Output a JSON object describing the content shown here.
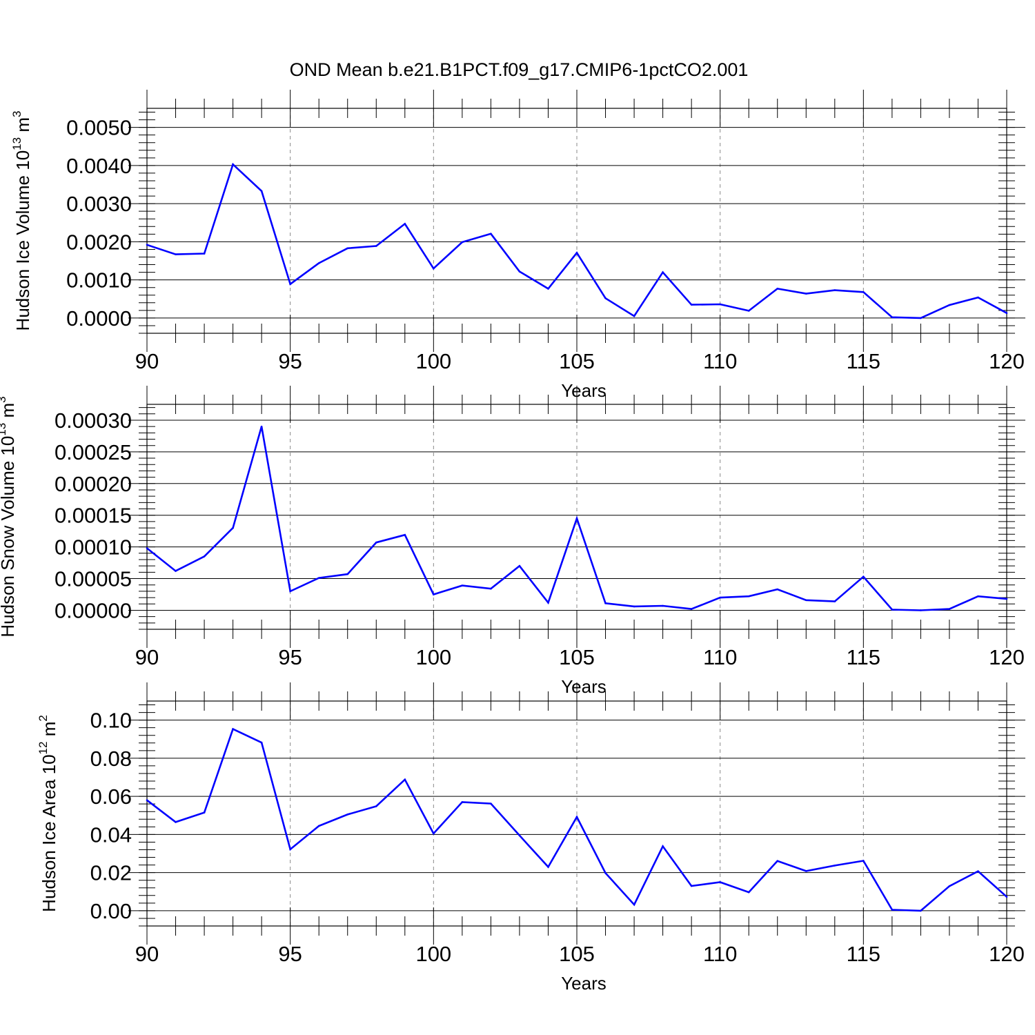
{
  "title": "OND Mean b.e21.B1PCT.f09_g17.CMIP6-1pctCO2.001",
  "colors": {
    "line": "#0000ff",
    "axis": "#000000",
    "grid": "#888888",
    "background": "#ffffff"
  },
  "chart_data": [
    {
      "type": "line",
      "title": "OND Mean b.e21.B1PCT.f09_g17.CMIP6-1pctCO2.001",
      "xlabel": "Years",
      "ylabel": {
        "base": "Hudson Ice Volume 10",
        "sup": "13",
        "unit": " m",
        "unit_sup": "3"
      },
      "xlim": [
        90,
        120
      ],
      "ylim": [
        -0.0004,
        0.0055
      ],
      "x_ticks": [
        90,
        95,
        100,
        105,
        110,
        115,
        120
      ],
      "x_tick_labels": [
        "90",
        "95",
        "100",
        "105",
        "110",
        "115",
        "120"
      ],
      "y_ticks": [
        0,
        0.001,
        0.002,
        0.003,
        0.004,
        0.005
      ],
      "y_tick_labels": [
        "0.0000",
        "0.0010",
        "0.0020",
        "0.0030",
        "0.0040",
        "0.0050"
      ],
      "y_minor_step": 0.0002,
      "grid": "dashed vertical at x major ticks",
      "x": [
        90,
        91,
        92,
        93,
        94,
        95,
        96,
        97,
        98,
        99,
        100,
        101,
        102,
        103,
        104,
        105,
        106,
        107,
        108,
        109,
        110,
        111,
        112,
        113,
        114,
        115,
        116,
        117,
        118,
        119,
        120
      ],
      "values": [
        0.00192,
        0.00167,
        0.00169,
        0.00403,
        0.00333,
        0.00089,
        0.00144,
        0.00183,
        0.00189,
        0.00247,
        0.0013,
        0.00199,
        0.00221,
        0.00122,
        0.00077,
        0.00171,
        0.00052,
        5e-05,
        0.0012,
        0.00035,
        0.00036,
        0.00019,
        0.00077,
        0.00064,
        0.00073,
        0.00068,
        2e-05,
        0.0,
        0.00034,
        0.00054,
        0.00013
      ]
    },
    {
      "type": "line",
      "xlabel": "Years",
      "ylabel": {
        "base": "Hudson Snow Volume 10",
        "sup": "13",
        "unit": " m",
        "unit_sup": "3"
      },
      "xlim": [
        90,
        120
      ],
      "ylim": [
        -3e-05,
        0.000325
      ],
      "x_ticks": [
        90,
        95,
        100,
        105,
        110,
        115,
        120
      ],
      "x_tick_labels": [
        "90",
        "95",
        "100",
        "105",
        "110",
        "115",
        "120"
      ],
      "y_ticks": [
        0,
        5e-05,
        0.0001,
        0.00015,
        0.0002,
        0.00025,
        0.0003
      ],
      "y_tick_labels": [
        "0.00000",
        "0.00005",
        "0.00010",
        "0.00015",
        "0.00020",
        "0.00025",
        "0.00030"
      ],
      "y_minor_step": 1e-05,
      "grid": "dashed vertical at x major ticks",
      "x": [
        90,
        91,
        92,
        93,
        94,
        95,
        96,
        97,
        98,
        99,
        100,
        101,
        102,
        103,
        104,
        105,
        106,
        107,
        108,
        109,
        110,
        111,
        112,
        113,
        114,
        115,
        116,
        117,
        118,
        119,
        120
      ],
      "values": [
        9.8e-05,
        6.2e-05,
        8.5e-05,
        0.00013,
        0.00029,
        3e-05,
        5.1e-05,
        5.7e-05,
        0.000107,
        0.000119,
        2.5e-05,
        3.9e-05,
        3.4e-05,
        7e-05,
        1.2e-05,
        0.000145,
        1.1e-05,
        6e-06,
        7e-06,
        2e-06,
        2e-05,
        2.2e-05,
        3.3e-05,
        1.6e-05,
        1.4e-05,
        5.3e-05,
        1e-06,
        0.0,
        2e-06,
        2.2e-05,
        1.8e-05
      ]
    },
    {
      "type": "line",
      "xlabel": "Years",
      "ylabel": {
        "base": "Hudson Ice Area 10",
        "sup": "12",
        "unit": " m",
        "unit_sup": "2"
      },
      "xlim": [
        90,
        120
      ],
      "ylim": [
        -0.008,
        0.11
      ],
      "x_ticks": [
        90,
        95,
        100,
        105,
        110,
        115,
        120
      ],
      "x_tick_labels": [
        "90",
        "95",
        "100",
        "105",
        "110",
        "115",
        "120"
      ],
      "y_ticks": [
        0,
        0.02,
        0.04,
        0.06,
        0.08,
        0.1
      ],
      "y_tick_labels": [
        "0.00",
        "0.02",
        "0.04",
        "0.06",
        "0.08",
        "0.10"
      ],
      "y_minor_step": 0.004,
      "grid": "dashed vertical at x major ticks",
      "x": [
        90,
        91,
        92,
        93,
        94,
        95,
        96,
        97,
        98,
        99,
        100,
        101,
        102,
        103,
        104,
        105,
        106,
        107,
        108,
        109,
        110,
        111,
        112,
        113,
        114,
        115,
        116,
        117,
        118,
        119,
        120
      ],
      "values": [
        0.058,
        0.0465,
        0.0515,
        0.0953,
        0.0882,
        0.0322,
        0.0445,
        0.0505,
        0.0548,
        0.0688,
        0.0405,
        0.057,
        0.0562,
        0.0395,
        0.023,
        0.0492,
        0.0198,
        0.0032,
        0.0338,
        0.013,
        0.015,
        0.0097,
        0.0261,
        0.0208,
        0.0237,
        0.0262,
        0.0005,
        0.0,
        0.0129,
        0.0207,
        0.0073
      ]
    }
  ]
}
